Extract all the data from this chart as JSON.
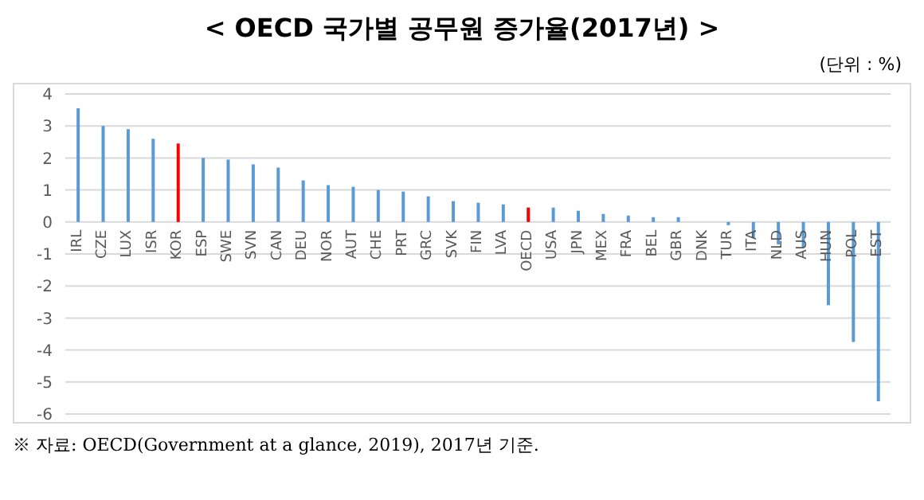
{
  "chart_data": {
    "type": "bar",
    "title": "< OECD 국가별 공무원 증가율(2017년) >",
    "subtitle": "(단위 : %)",
    "categories": [
      "IRL",
      "CZE",
      "LUX",
      "ISR",
      "KOR",
      "ESP",
      "SWE",
      "SVN",
      "CAN",
      "DEU",
      "NOR",
      "AUT",
      "CHE",
      "PRT",
      "GRC",
      "SVK",
      "FIN",
      "LVA",
      "OECD",
      "USA",
      "JPN",
      "MEX",
      "FRA",
      "BEL",
      "GBR",
      "DNK",
      "TUR",
      "ITA",
      "NLD",
      "AUS",
      "HUN",
      "POL",
      "EST"
    ],
    "values": [
      3.55,
      3.0,
      2.9,
      2.6,
      2.45,
      2.0,
      1.95,
      1.8,
      1.7,
      1.3,
      1.15,
      1.1,
      1.0,
      0.95,
      0.8,
      0.65,
      0.6,
      0.55,
      0.45,
      0.45,
      0.35,
      0.25,
      0.2,
      0.15,
      0.15,
      0,
      -0.1,
      -0.5,
      -0.7,
      -0.8,
      -2.6,
      -3.75,
      -5.6
    ],
    "colors": [
      "#5b9bd5",
      "#5b9bd5",
      "#5b9bd5",
      "#5b9bd5",
      "#ff0000",
      "#5b9bd5",
      "#5b9bd5",
      "#5b9bd5",
      "#5b9bd5",
      "#5b9bd5",
      "#5b9bd5",
      "#5b9bd5",
      "#5b9bd5",
      "#5b9bd5",
      "#5b9bd5",
      "#5b9bd5",
      "#5b9bd5",
      "#5b9bd5",
      "#ff0000",
      "#5b9bd5",
      "#5b9bd5",
      "#5b9bd5",
      "#5b9bd5",
      "#5b9bd5",
      "#5b9bd5",
      "#5b9bd5",
      "#5b9bd5",
      "#5b9bd5",
      "#5b9bd5",
      "#5b9bd5",
      "#5b9bd5",
      "#5b9bd5",
      "#5b9bd5"
    ],
    "ylim": [
      -6,
      4
    ],
    "yticks": [
      -6,
      -5,
      -4,
      -3,
      -2,
      -1,
      0,
      1,
      2,
      3,
      4
    ],
    "grid": "y",
    "annotations": [
      "※ 자료: OECD(Government at a glance, 2019), 2017년 기준."
    ]
  }
}
